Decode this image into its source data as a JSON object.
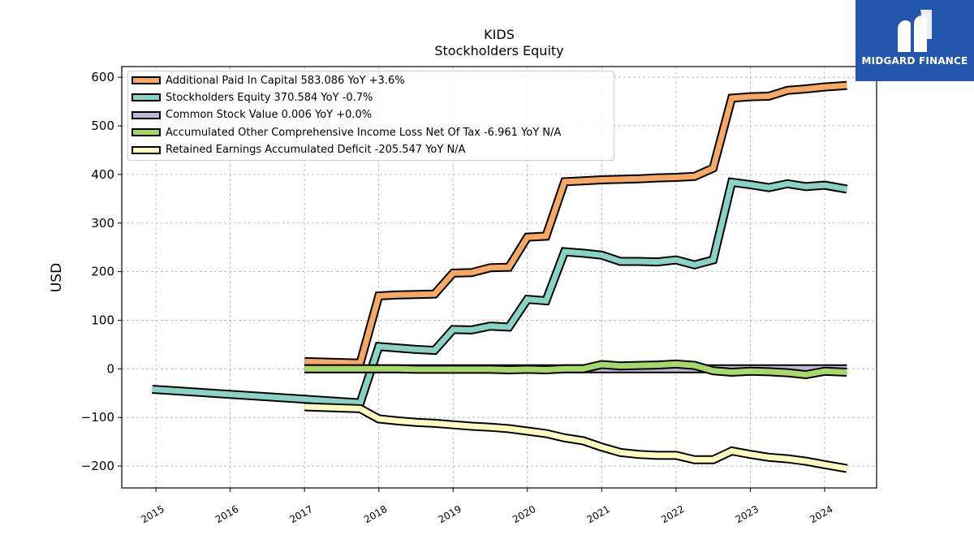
{
  "chart_data": {
    "type": "line",
    "title": "KIDS",
    "subtitle": "Stockholders  Equity",
    "ylabel": "USD",
    "xlabel": "",
    "x_ticks": [
      "2015",
      "2016",
      "2017",
      "2018",
      "2019",
      "2020",
      "2021",
      "2022",
      "2023",
      "2024"
    ],
    "y_ticks": [
      "600",
      "500",
      "400",
      "300",
      "200",
      "100",
      "0",
      "−100",
      "−200"
    ],
    "xlim": [
      2014.54,
      2024.7
    ],
    "ylim": [
      -245,
      622
    ],
    "grid": true,
    "legend_position": "top-left",
    "series": [
      {
        "name": "Additional Paid In Capital",
        "legend": "Additional Paid In Capital  583.086 YoY +3.6%",
        "color": "#f7a862",
        "x": [
          2017.0,
          2017.75,
          2018.0,
          2018.25,
          2018.5,
          2018.75,
          2019.0,
          2019.25,
          2019.5,
          2019.75,
          2020.0,
          2020.25,
          2020.5,
          2020.75,
          2021.0,
          2021.25,
          2021.5,
          2021.75,
          2022.0,
          2022.25,
          2022.5,
          2022.75,
          2023.0,
          2023.25,
          2023.5,
          2023.75,
          2024.0,
          2024.3
        ],
        "y": [
          15,
          12,
          150,
          152,
          153,
          154,
          197,
          198,
          208,
          209,
          271,
          273,
          385,
          387,
          389,
          390,
          391,
          393,
          394,
          396,
          413,
          557,
          560,
          561,
          573,
          576,
          580,
          583
        ]
      },
      {
        "name": "Stockholders Equity",
        "legend": "Stockholders Equity  370.584 YoY -0.7%",
        "color": "#88d3c3",
        "x": [
          2014.95,
          2017.75,
          2018.0,
          2018.25,
          2018.5,
          2018.75,
          2019.0,
          2019.25,
          2019.5,
          2019.75,
          2020.0,
          2020.25,
          2020.5,
          2020.75,
          2021.0,
          2021.25,
          2021.5,
          2021.75,
          2022.0,
          2022.25,
          2022.5,
          2022.75,
          2023.0,
          2023.25,
          2023.5,
          2023.75,
          2024.0,
          2024.3
        ],
        "y": [
          -42,
          -70,
          46,
          43,
          40,
          38,
          81,
          80,
          88,
          86,
          143,
          140,
          241,
          238,
          234,
          221,
          221,
          220,
          224,
          214,
          224,
          384,
          379,
          373,
          381,
          375,
          378,
          370
        ]
      },
      {
        "name": "Common Stock Value",
        "legend": "Common Stock Value  0.006 YoY +0.0%",
        "color": "#bdb7d8",
        "x": [
          2017.0,
          2024.3
        ],
        "y": [
          0.006,
          0.006
        ]
      },
      {
        "name": "Accumulated Other Comprehensive Income Loss Net Of Tax",
        "legend": "Accumulated Other Comprehensive Income Loss Net Of Tax  -6.961 YoY N/A",
        "color": "#a8d86a",
        "x": [
          2017.0,
          2017.75,
          2018.0,
          2018.25,
          2018.5,
          2018.75,
          2019.0,
          2019.25,
          2019.5,
          2019.75,
          2020.0,
          2020.25,
          2020.5,
          2020.75,
          2021.0,
          2021.25,
          2021.5,
          2021.75,
          2022.0,
          2022.25,
          2022.5,
          2022.75,
          2023.0,
          2023.25,
          2023.5,
          2023.75,
          2024.0,
          2024.3
        ],
        "y": [
          0,
          0,
          0,
          0,
          -1,
          -1,
          -1,
          -1,
          -1,
          -2,
          -1,
          -2,
          0,
          0,
          9,
          6,
          7,
          8,
          10,
          7,
          -4,
          -7,
          -5,
          -6,
          -8,
          -12,
          -5,
          -7
        ]
      },
      {
        "name": "Retained Earnings Accumulated Deficit",
        "legend": "Retained Earnings Accumulated Deficit  -205.547 YoY N/A",
        "color": "#fefcbe",
        "x": [
          2017.0,
          2017.75,
          2018.0,
          2018.25,
          2018.5,
          2018.75,
          2019.0,
          2019.25,
          2019.5,
          2019.75,
          2020.0,
          2020.25,
          2020.5,
          2020.75,
          2021.0,
          2021.25,
          2021.5,
          2021.75,
          2022.0,
          2022.25,
          2022.5,
          2022.75,
          2023.0,
          2023.25,
          2023.5,
          2023.75,
          2024.0,
          2024.3
        ],
        "y": [
          -78,
          -82,
          -103,
          -107,
          -110,
          -112,
          -115,
          -118,
          -120,
          -123,
          -128,
          -133,
          -142,
          -148,
          -161,
          -172,
          -176,
          -178,
          -178,
          -187,
          -187,
          -169,
          -176,
          -182,
          -185,
          -190,
          -197,
          -205
        ]
      }
    ]
  },
  "logo": {
    "text": "MIDGARD FINANCE",
    "background": "#2556ad",
    "icon": "midgard-logo-icon"
  }
}
